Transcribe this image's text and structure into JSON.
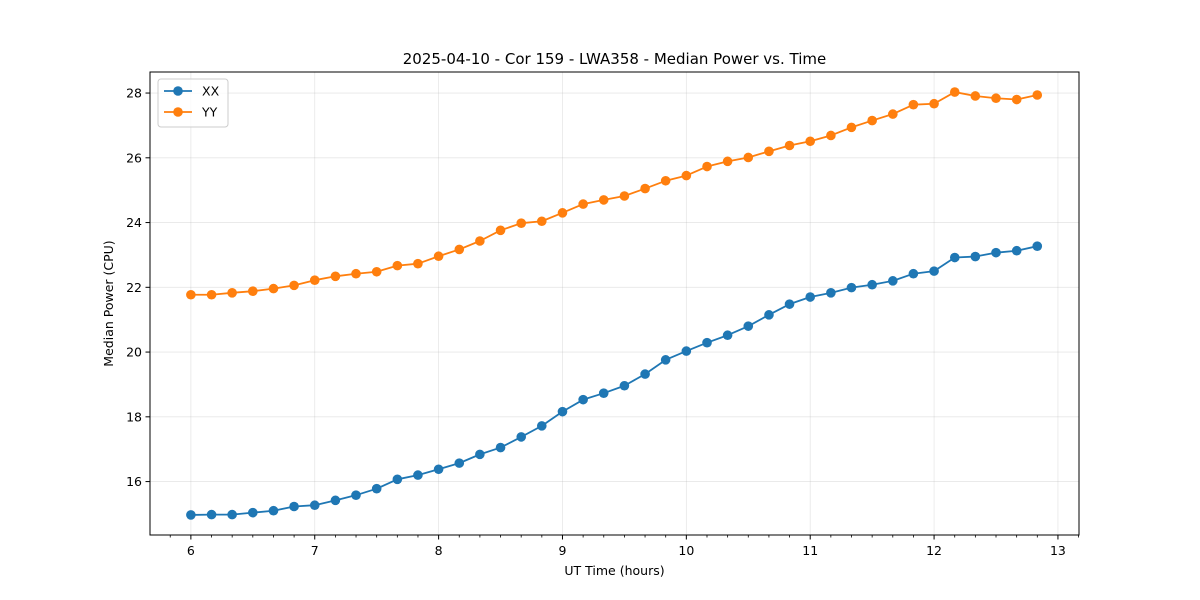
{
  "chart_data": {
    "type": "line",
    "title": "2025-04-10 - Cor 159 - LWA358 - Median Power vs. Time",
    "xlabel": "UT Time (hours)",
    "ylabel": "Median Power (CPU)",
    "xlim": [
      5.67,
      13.17
    ],
    "ylim": [
      14.35,
      28.65
    ],
    "xticks": [
      6,
      7,
      8,
      9,
      10,
      11,
      12,
      13
    ],
    "yticks": [
      16,
      18,
      20,
      22,
      24,
      26,
      28
    ],
    "grid": true,
    "legend_position": "top-left",
    "x": [
      6.0,
      6.167,
      6.333,
      6.5,
      6.667,
      6.833,
      7.0,
      7.167,
      7.333,
      7.5,
      7.667,
      7.833,
      8.0,
      8.167,
      8.333,
      8.5,
      8.667,
      8.833,
      9.0,
      9.167,
      9.333,
      9.5,
      9.667,
      9.833,
      10.0,
      10.167,
      10.333,
      10.5,
      10.667,
      10.833,
      11.0,
      11.167,
      11.333,
      11.5,
      11.667,
      11.833,
      12.0,
      12.167,
      12.333,
      12.5,
      12.667,
      12.833
    ],
    "series": [
      {
        "name": "XX",
        "color": "#1f77b4",
        "values": [
          14.97,
          14.98,
          14.98,
          15.04,
          15.1,
          15.23,
          15.27,
          15.42,
          15.58,
          15.78,
          16.07,
          16.2,
          16.38,
          16.57,
          16.84,
          17.05,
          17.38,
          17.72,
          18.16,
          18.53,
          18.73,
          18.96,
          19.32,
          19.76,
          20.03,
          20.29,
          20.52,
          20.8,
          21.15,
          21.48,
          21.7,
          21.83,
          21.99,
          22.08,
          22.2,
          22.42,
          22.5,
          22.92,
          22.95,
          23.07,
          23.13,
          23.27
        ]
      },
      {
        "name": "YY",
        "color": "#ff7f0e",
        "values": [
          21.77,
          21.77,
          21.83,
          21.88,
          21.96,
          22.06,
          22.22,
          22.34,
          22.42,
          22.48,
          22.67,
          22.73,
          22.96,
          23.17,
          23.43,
          23.76,
          23.98,
          24.04,
          24.3,
          24.57,
          24.7,
          24.82,
          25.05,
          25.29,
          25.45,
          25.73,
          25.89,
          26.01,
          26.2,
          26.38,
          26.51,
          26.69,
          26.94,
          27.15,
          27.35,
          27.64,
          27.67,
          28.03,
          27.91,
          27.84,
          27.8,
          27.94
        ]
      }
    ]
  }
}
